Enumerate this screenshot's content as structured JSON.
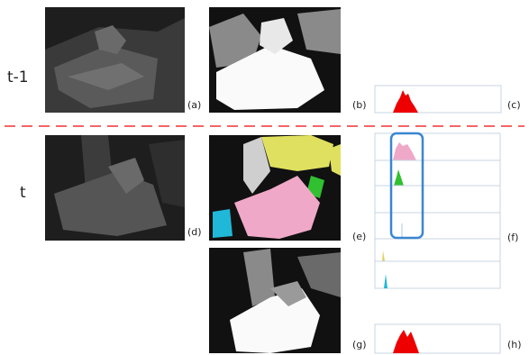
{
  "row_labels": [
    "t-1",
    "t"
  ],
  "panel_labels": [
    "(a)",
    "(b)",
    "(c)",
    "(d)",
    "(e)",
    "(f)",
    "(g)",
    "(h)"
  ]
}
